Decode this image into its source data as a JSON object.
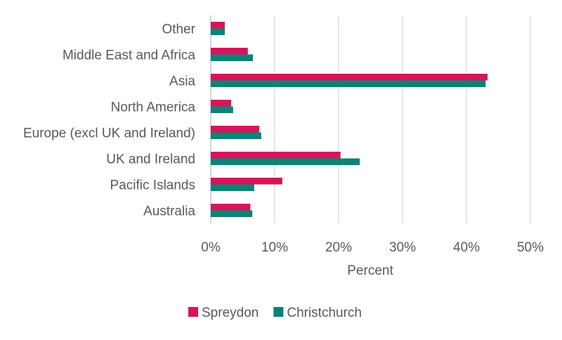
{
  "chart_data": {
    "type": "bar",
    "orientation": "horizontal",
    "categories": [
      "Other",
      "Middle East and Africa",
      "Asia",
      "North America",
      "Europe (excl UK and Ireland)",
      "UK and Ireland",
      "Pacific Islands",
      "Australia"
    ],
    "series": [
      {
        "name": "Spreydon",
        "color": "#d5165a",
        "values": [
          2.2,
          5.8,
          43.3,
          3.2,
          7.6,
          20.3,
          11.2,
          6.2
        ]
      },
      {
        "name": "Christchurch",
        "color": "#0e8178",
        "values": [
          2.2,
          6.6,
          43.0,
          3.5,
          7.9,
          23.3,
          6.8,
          6.5
        ]
      }
    ],
    "xlabel": "Percent",
    "xlim": [
      0,
      50
    ],
    "xticks": [
      0,
      10,
      20,
      30,
      40,
      50
    ],
    "xtick_labels": [
      "0%",
      "10%",
      "20%",
      "30%",
      "40%",
      "50%"
    ],
    "grid": "vertical",
    "legend_position": "bottom"
  }
}
